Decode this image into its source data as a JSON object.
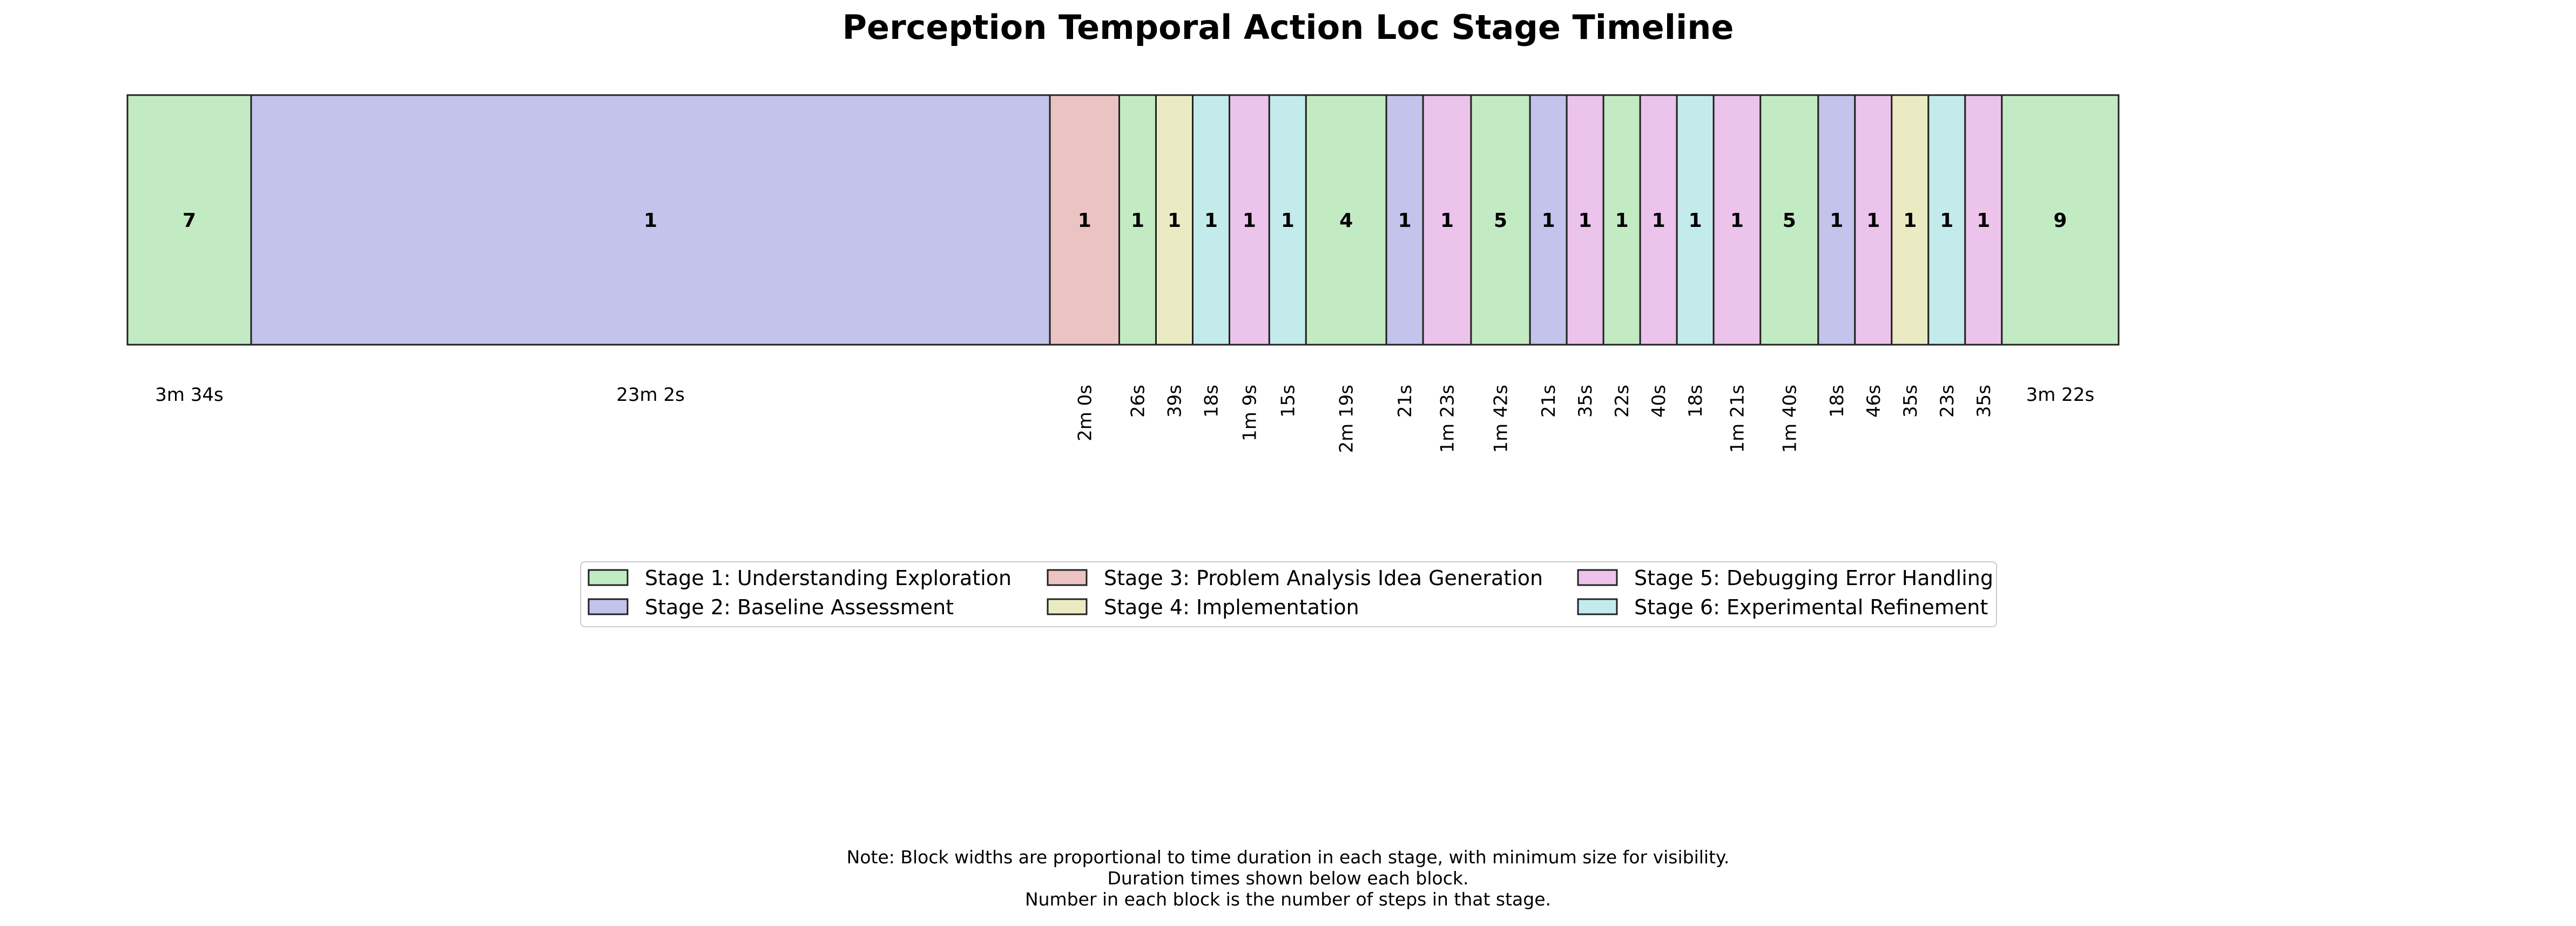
{
  "chart_data": {
    "type": "timeline",
    "title": "Perception Temporal Action Loc Stage Timeline",
    "stages": [
      {
        "name": "Stage 1: Understanding Exploration",
        "color": "#c3ebc3"
      },
      {
        "name": "Stage 2: Baseline Assessment",
        "color": "#c3c3eb"
      },
      {
        "name": "Stage 3: Problem Analysis Idea Generation",
        "color": "#ebc3c3"
      },
      {
        "name": "Stage 4: Implementation",
        "color": "#ebebc3"
      },
      {
        "name": "Stage 5: Debugging Error Handling",
        "color": "#ebc3eb"
      },
      {
        "name": "Stage 6: Experimental Refinement",
        "color": "#c3ebeb"
      }
    ],
    "blocks": [
      {
        "stage": 1,
        "steps": "7",
        "duration": "3m 34s",
        "seconds": 214
      },
      {
        "stage": 2,
        "steps": "1",
        "duration": "23m 2s",
        "seconds": 1382
      },
      {
        "stage": 3,
        "steps": "1",
        "duration": "2m 0s",
        "seconds": 120
      },
      {
        "stage": 1,
        "steps": "1",
        "duration": "26s",
        "seconds": 26
      },
      {
        "stage": 4,
        "steps": "1",
        "duration": "39s",
        "seconds": 39
      },
      {
        "stage": 6,
        "steps": "1",
        "duration": "18s",
        "seconds": 18
      },
      {
        "stage": 5,
        "steps": "1",
        "duration": "1m 9s",
        "seconds": 69
      },
      {
        "stage": 6,
        "steps": "1",
        "duration": "15s",
        "seconds": 15
      },
      {
        "stage": 1,
        "steps": "4",
        "duration": "2m 19s",
        "seconds": 139
      },
      {
        "stage": 2,
        "steps": "1",
        "duration": "21s",
        "seconds": 21
      },
      {
        "stage": 5,
        "steps": "1",
        "duration": "1m 23s",
        "seconds": 83
      },
      {
        "stage": 1,
        "steps": "5",
        "duration": "1m 42s",
        "seconds": 102
      },
      {
        "stage": 2,
        "steps": "1",
        "duration": "21s",
        "seconds": 21
      },
      {
        "stage": 5,
        "steps": "1",
        "duration": "35s",
        "seconds": 35
      },
      {
        "stage": 1,
        "steps": "1",
        "duration": "22s",
        "seconds": 22
      },
      {
        "stage": 5,
        "steps": "1",
        "duration": "40s",
        "seconds": 40
      },
      {
        "stage": 6,
        "steps": "1",
        "duration": "18s",
        "seconds": 18
      },
      {
        "stage": 5,
        "steps": "1",
        "duration": "1m 21s",
        "seconds": 81
      },
      {
        "stage": 1,
        "steps": "5",
        "duration": "1m 40s",
        "seconds": 100
      },
      {
        "stage": 2,
        "steps": "1",
        "duration": "18s",
        "seconds": 18
      },
      {
        "stage": 5,
        "steps": "1",
        "duration": "46s",
        "seconds": 46
      },
      {
        "stage": 4,
        "steps": "1",
        "duration": "35s",
        "seconds": 35
      },
      {
        "stage": 6,
        "steps": "1",
        "duration": "23s",
        "seconds": 23
      },
      {
        "stage": 5,
        "steps": "1",
        "duration": "35s",
        "seconds": 35
      },
      {
        "stage": 1,
        "steps": "9",
        "duration": "3m 22s",
        "seconds": 202
      }
    ],
    "notes": [
      "Note: Block widths are proportional to time duration in each stage, with minimum size for visibility.",
      "Duration times shown below each block.",
      "Number in each block is the number of steps in that stage."
    ]
  }
}
